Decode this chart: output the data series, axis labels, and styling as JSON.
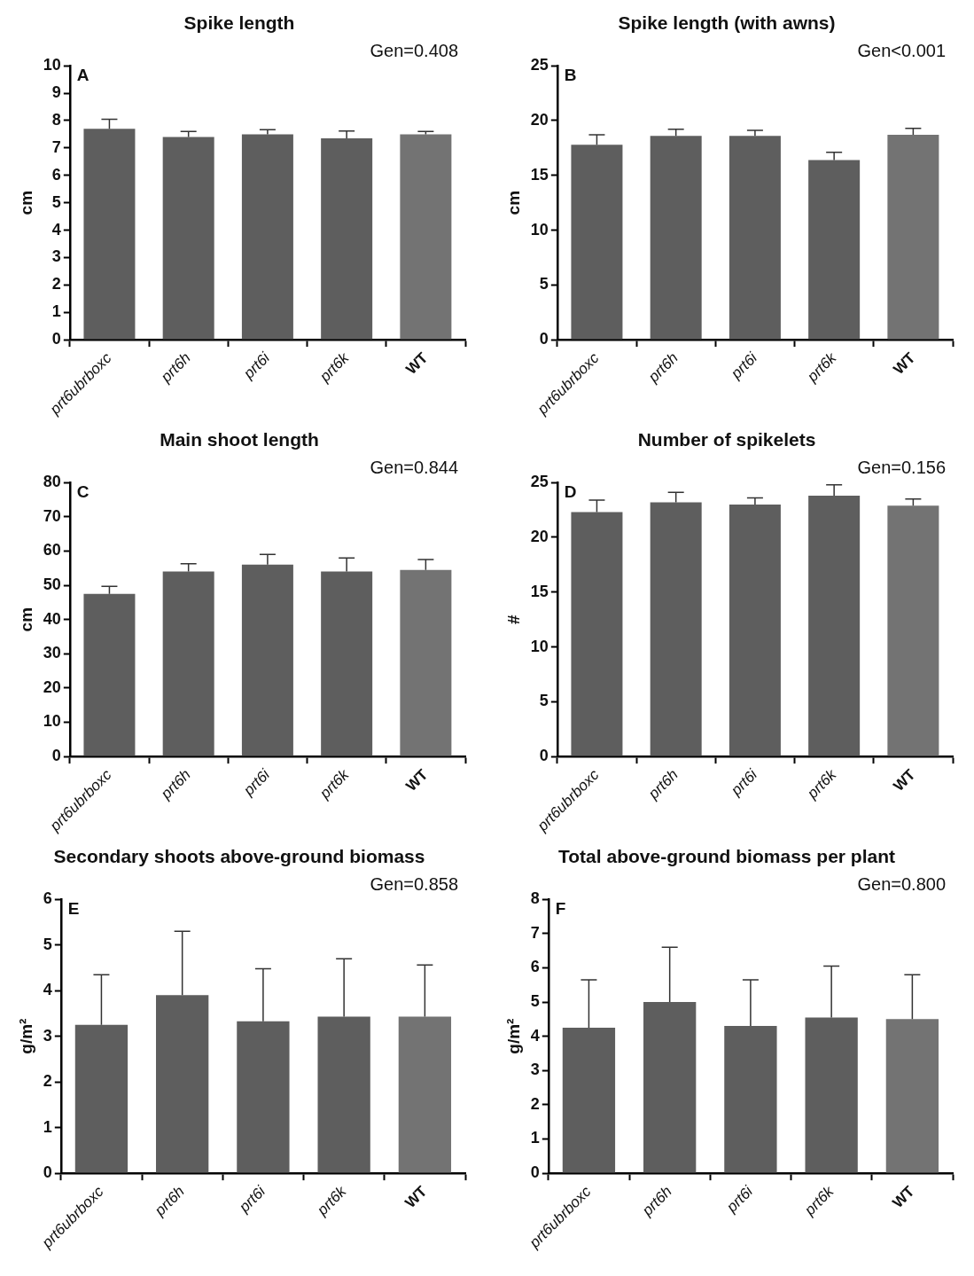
{
  "chart_data": [
    {
      "type": "bar",
      "title": "Spike length",
      "ylabel": "cm",
      "categories": [
        "prt6ubrboxc",
        "prt6h",
        "prt6i",
        "prt6k",
        "WT"
      ],
      "values": [
        7.7,
        7.4,
        7.5,
        7.35,
        7.5
      ],
      "errors": [
        0.35,
        0.2,
        0.17,
        0.27,
        0.1
      ],
      "colors": [
        "#5e5e5e",
        "#5e5e5e",
        "#5e5e5e",
        "#5e5e5e",
        "#737373"
      ],
      "ylim": [
        0,
        10
      ],
      "yticks": [
        0,
        1,
        2,
        3,
        4,
        5,
        6,
        7,
        8,
        9,
        10
      ],
      "annotations": [
        "A",
        "Gen=0.408"
      ]
    },
    {
      "type": "bar",
      "title": "Spike length (with awns)",
      "ylabel": "cm",
      "categories": [
        "prt6ubrboxc",
        "prt6h",
        "prt6i",
        "prt6k",
        "WT"
      ],
      "values": [
        17.8,
        18.6,
        18.6,
        16.4,
        18.7
      ],
      "errors": [
        0.9,
        0.6,
        0.5,
        0.7,
        0.6
      ],
      "colors": [
        "#5e5e5e",
        "#5e5e5e",
        "#5e5e5e",
        "#5e5e5e",
        "#737373"
      ],
      "ylim": [
        0,
        25
      ],
      "yticks": [
        0,
        5,
        10,
        15,
        20,
        25
      ],
      "annotations": [
        "B",
        "Gen<0.001"
      ]
    },
    {
      "type": "bar",
      "title": "Main shoot length",
      "ylabel": "cm",
      "categories": [
        "prt6ubrboxc",
        "prt6h",
        "prt6i",
        "prt6k",
        "WT"
      ],
      "values": [
        47.5,
        54,
        56,
        54,
        54.5
      ],
      "errors": [
        2.2,
        2.3,
        3,
        4,
        3
      ],
      "colors": [
        "#5e5e5e",
        "#5e5e5e",
        "#5e5e5e",
        "#5e5e5e",
        "#737373"
      ],
      "ylim": [
        0,
        80
      ],
      "yticks": [
        0,
        10,
        20,
        30,
        40,
        50,
        60,
        70,
        80
      ],
      "annotations": [
        "C",
        "Gen=0.844"
      ]
    },
    {
      "type": "bar",
      "title": "Number of spikelets",
      "ylabel": "#",
      "categories": [
        "prt6ubrboxc",
        "prt6h",
        "prt6i",
        "prt6k",
        "WT"
      ],
      "values": [
        22.3,
        23.2,
        23.0,
        23.8,
        22.9
      ],
      "errors": [
        1.1,
        0.9,
        0.6,
        1.0,
        0.6
      ],
      "colors": [
        "#5e5e5e",
        "#5e5e5e",
        "#5e5e5e",
        "#5e5e5e",
        "#737373"
      ],
      "ylim": [
        0,
        25
      ],
      "yticks": [
        0,
        5,
        10,
        15,
        20,
        25
      ],
      "annotations": [
        "D",
        "Gen=0.156"
      ]
    },
    {
      "type": "bar",
      "title": "Secondary shoots above-ground biomass",
      "ylabel": "g/m²",
      "categories": [
        "prt6ubrboxc",
        "prt6h",
        "prt6i",
        "prt6k",
        "WT"
      ],
      "values": [
        3.25,
        3.9,
        3.33,
        3.43,
        3.43
      ],
      "errors": [
        1.1,
        1.4,
        1.15,
        1.27,
        1.13
      ],
      "colors": [
        "#5e5e5e",
        "#5e5e5e",
        "#5e5e5e",
        "#5e5e5e",
        "#737373"
      ],
      "ylim": [
        0,
        6
      ],
      "yticks": [
        0,
        1,
        2,
        3,
        4,
        5,
        6
      ],
      "annotations": [
        "E",
        "Gen=0.858"
      ]
    },
    {
      "type": "bar",
      "title": "Total above-ground biomass per plant",
      "ylabel": "g/m²",
      "categories": [
        "prt6ubrboxc",
        "prt6h",
        "prt6i",
        "prt6k",
        "WT"
      ],
      "values": [
        4.25,
        5.0,
        4.3,
        4.55,
        4.5
      ],
      "errors": [
        1.4,
        1.6,
        1.35,
        1.5,
        1.3
      ],
      "colors": [
        "#5e5e5e",
        "#5e5e5e",
        "#5e5e5e",
        "#5e5e5e",
        "#737373"
      ],
      "ylim": [
        0,
        8
      ],
      "yticks": [
        0,
        1,
        2,
        3,
        4,
        5,
        6,
        7,
        8
      ],
      "annotations": [
        "F",
        "Gen=0.800"
      ]
    }
  ]
}
